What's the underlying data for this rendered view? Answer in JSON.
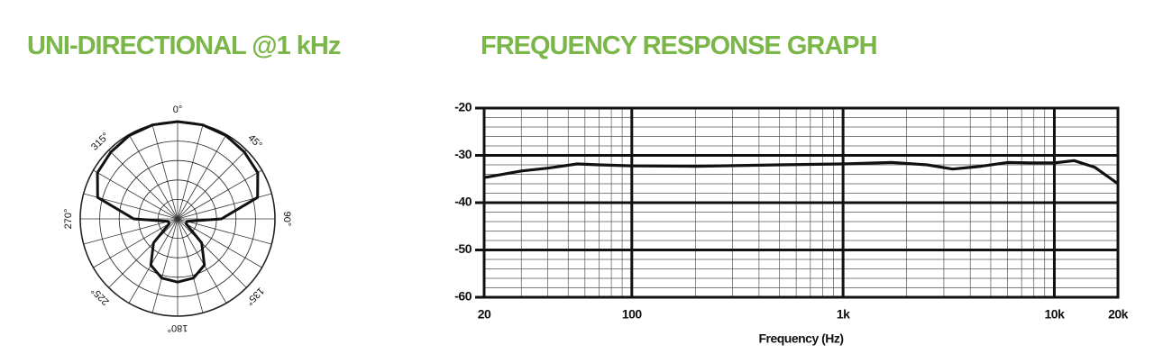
{
  "chart_data": [
    {
      "type": "polar",
      "title": "UNI-DIRECTIONAL @1 kHz",
      "theta": [
        0,
        15,
        30,
        45,
        60,
        75,
        90,
        105,
        120,
        135,
        150,
        165,
        180,
        195,
        210,
        225,
        240,
        255,
        270,
        285,
        300,
        315,
        330,
        345
      ],
      "values": [
        1.0,
        1.0,
        0.99,
        0.97,
        0.95,
        0.85,
        0.45,
        0.1,
        0.1,
        0.35,
        0.55,
        0.63,
        0.65,
        0.63,
        0.55,
        0.35,
        0.1,
        0.1,
        0.45,
        0.85,
        0.95,
        0.97,
        0.99,
        1.0
      ],
      "color": "#111111",
      "rlim": [
        0,
        1
      ],
      "rticks": [
        0.2,
        0.4,
        0.6,
        0.8,
        1.0
      ],
      "thetaticks": [
        {
          "value": 0,
          "label": "0°"
        },
        {
          "value": 45,
          "label": "45°"
        },
        {
          "value": 90,
          "label": "90°"
        },
        {
          "value": 135,
          "label": "135°"
        },
        {
          "value": 180,
          "label": "180°"
        },
        {
          "value": 225,
          "label": "225°"
        },
        {
          "value": 270,
          "label": "270°"
        },
        {
          "value": 315,
          "label": "315°"
        }
      ]
    },
    {
      "type": "line",
      "title": "FREQUENCY RESPONSE GRAPH",
      "x_label": "Frequency (Hz)",
      "x": [
        20,
        30,
        40,
        55,
        70,
        100,
        200,
        500,
        1000,
        1700,
        2500,
        3300,
        4500,
        6000,
        8000,
        10000,
        12400,
        15500,
        20000
      ],
      "series": [
        {
          "color": "#111111",
          "values": [
            -34.7,
            -33.3,
            -32.7,
            -31.8,
            -32.0,
            -32.2,
            -32.3,
            -32.0,
            -31.8,
            -31.5,
            -32.0,
            -32.9,
            -32.3,
            -31.5,
            -31.6,
            -31.6,
            -31.1,
            -32.5,
            -36.0
          ]
        }
      ],
      "xscale": "log",
      "xlim": [
        20,
        20000
      ],
      "xticks": [
        20,
        100,
        {
          "value": 1000,
          "label": "1k"
        },
        {
          "value": 10000,
          "label": "10k"
        },
        {
          "value": 20000,
          "label": "20k"
        }
      ],
      "ylim": [
        -60,
        -20
      ],
      "yticks": [
        -20,
        -30,
        -40,
        -50,
        -60
      ],
      "grid": true
    }
  ]
}
